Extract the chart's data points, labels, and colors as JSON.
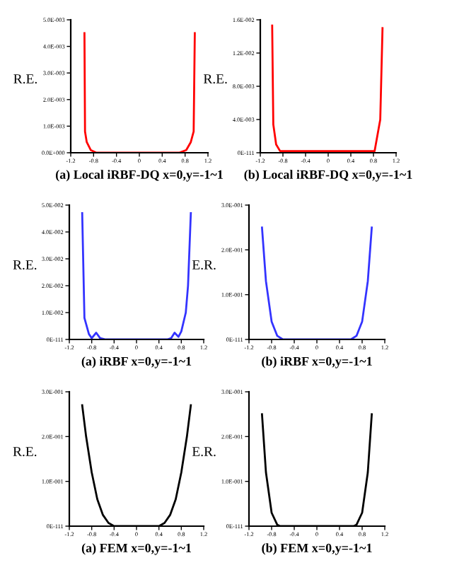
{
  "chart_data": [
    {
      "type": "line",
      "xlabel": "(a) Local iRBF-DQ x=0,y=-1~1",
      "ylabel": "R.E.",
      "x": [
        -0.96,
        -0.95,
        -0.92,
        -0.85,
        -0.75,
        0.7,
        0.82,
        0.9,
        0.95,
        0.97
      ],
      "series": [
        {
          "color": "#ff0000",
          "values": [
            0.0045,
            0.0008,
            0.0004,
            0.0001,
            0,
            0,
            0.0001,
            0.0004,
            0.0008,
            0.0045
          ]
        }
      ],
      "xlim": [
        -1.2,
        1.2
      ],
      "xticks": [
        -1.2,
        -0.8,
        -0.4,
        0,
        0.4,
        0.8,
        1.2
      ],
      "ylim": [
        0,
        0.005
      ],
      "yticks": [
        {
          "value": 0,
          "label": "0.0E+000"
        },
        {
          "value": 0.001,
          "label": "1.0E-003"
        },
        {
          "value": 0.002,
          "label": "2.0E-003"
        },
        {
          "value": 0.003,
          "label": "3.0E-003"
        },
        {
          "value": 0.004,
          "label": "4.0E-003"
        },
        {
          "value": 0.005,
          "label": "5.0E-003"
        }
      ],
      "grid": false,
      "legend": false
    },
    {
      "type": "line",
      "xlabel": "(b) Local iRBF-DQ x=0,y=-1~1",
      "ylabel": "R.E.",
      "x": [
        -0.99,
        -0.97,
        -0.92,
        -0.85,
        0.82,
        0.92,
        0.96
      ],
      "series": [
        {
          "color": "#ff0000",
          "values": [
            0.0153,
            0.0034,
            0.001,
            0.0002,
            0.0002,
            0.004,
            0.015
          ]
        }
      ],
      "xlim": [
        -1.2,
        1.2
      ],
      "xticks": [
        -1.2,
        -0.8,
        -0.4,
        0,
        0.4,
        0.8,
        1.2
      ],
      "ylim": [
        0,
        0.016
      ],
      "yticks": [
        {
          "value": 0,
          "label": "0E-111"
        },
        {
          "value": 0.004,
          "label": "4.0E-003"
        },
        {
          "value": 0.008,
          "label": "8.0E-003"
        },
        {
          "value": 0.012,
          "label": "1.2E-002"
        },
        {
          "value": 0.016,
          "label": "1.6E-002"
        }
      ],
      "grid": false,
      "legend": false
    },
    {
      "type": "line",
      "xlabel": "(a) iRBF x=0,y=-1~1",
      "ylabel": "R.E.",
      "x": [
        -0.97,
        -0.93,
        -0.85,
        -0.8,
        -0.72,
        -0.65,
        -0.55,
        0.55,
        0.62,
        0.68,
        0.75,
        0.8,
        0.88,
        0.92,
        0.97
      ],
      "series": [
        {
          "color": "#3333ff",
          "values": [
            0.047,
            0.008,
            0.002,
            0.0005,
            0.0025,
            0.0005,
            0,
            0,
            0.0005,
            0.0025,
            0.001,
            0.003,
            0.01,
            0.02,
            0.047
          ]
        }
      ],
      "xlim": [
        -1.2,
        1.2
      ],
      "xticks": [
        -1.2,
        -0.8,
        -0.4,
        0,
        0.4,
        0.8,
        1.2
      ],
      "ylim": [
        0,
        0.05
      ],
      "yticks": [
        {
          "value": 0,
          "label": "0E-111"
        },
        {
          "value": 0.01,
          "label": "1.0E-002"
        },
        {
          "value": 0.02,
          "label": "2.0E-002"
        },
        {
          "value": 0.03,
          "label": "3.0E-002"
        },
        {
          "value": 0.04,
          "label": "4.0E-002"
        },
        {
          "value": 0.05,
          "label": "5.0E-002"
        }
      ],
      "grid": false,
      "legend": false
    },
    {
      "type": "line",
      "xlabel": "(b) iRBF x=0,y=-1~1",
      "ylabel": "E.R.",
      "x": [
        -0.97,
        -0.9,
        -0.8,
        -0.7,
        -0.6,
        0.6,
        0.7,
        0.8,
        0.9,
        0.97
      ],
      "series": [
        {
          "color": "#3333ff",
          "values": [
            0.25,
            0.13,
            0.04,
            0.008,
            0,
            0,
            0.008,
            0.04,
            0.13,
            0.25
          ]
        }
      ],
      "xlim": [
        -1.2,
        1.2
      ],
      "xticks": [
        -1.2,
        -0.8,
        -0.4,
        0,
        0.4,
        0.8,
        1.2
      ],
      "ylim": [
        0,
        0.3
      ],
      "yticks": [
        {
          "value": 0,
          "label": "0E-111"
        },
        {
          "value": 0.1,
          "label": "1.0E-001"
        },
        {
          "value": 0.2,
          "label": "2.0E-001"
        },
        {
          "value": 0.3,
          "label": "3.0E-001"
        }
      ],
      "grid": false,
      "legend": false
    },
    {
      "type": "line",
      "xlabel": "(a) FEM x=0,y=-1~1",
      "ylabel": "R.E.",
      "x": [
        -0.97,
        -0.9,
        -0.8,
        -0.7,
        -0.6,
        -0.5,
        -0.4,
        0.4,
        0.5,
        0.6,
        0.7,
        0.8,
        0.9,
        0.97
      ],
      "series": [
        {
          "color": "#000000",
          "values": [
            0.27,
            0.2,
            0.12,
            0.06,
            0.025,
            0.007,
            0,
            0,
            0.007,
            0.025,
            0.06,
            0.12,
            0.2,
            0.27
          ]
        }
      ],
      "xlim": [
        -1.2,
        1.2
      ],
      "xticks": [
        -1.2,
        -0.8,
        -0.4,
        0,
        0.4,
        0.8,
        1.2
      ],
      "ylim": [
        0,
        0.3
      ],
      "yticks": [
        {
          "value": 0,
          "label": "0E-111"
        },
        {
          "value": 0.1,
          "label": "1.0E-001"
        },
        {
          "value": 0.2,
          "label": "2.0E-001"
        },
        {
          "value": 0.3,
          "label": "3.0E-001"
        }
      ],
      "grid": false,
      "legend": false
    },
    {
      "type": "line",
      "xlabel": "(b) FEM x=0,y=-1~1",
      "ylabel": "E.R.",
      "x": [
        -0.97,
        -0.9,
        -0.8,
        -0.7,
        -0.65,
        0.65,
        0.7,
        0.8,
        0.9,
        0.97
      ],
      "series": [
        {
          "color": "#000000",
          "values": [
            0.25,
            0.12,
            0.03,
            0.003,
            0,
            0,
            0.003,
            0.03,
            0.12,
            0.25
          ]
        }
      ],
      "xlim": [
        -1.2,
        1.2
      ],
      "xticks": [
        -1.2,
        -0.8,
        -0.4,
        0,
        0.4,
        0.8,
        1.2
      ],
      "ylim": [
        0,
        0.3
      ],
      "yticks": [
        {
          "value": 0,
          "label": "0E-111"
        },
        {
          "value": 0.1,
          "label": "1.0E-001"
        },
        {
          "value": 0.2,
          "label": "2.0E-001"
        },
        {
          "value": 0.3,
          "label": "3.0E-001"
        }
      ],
      "grid": false,
      "legend": false
    }
  ]
}
